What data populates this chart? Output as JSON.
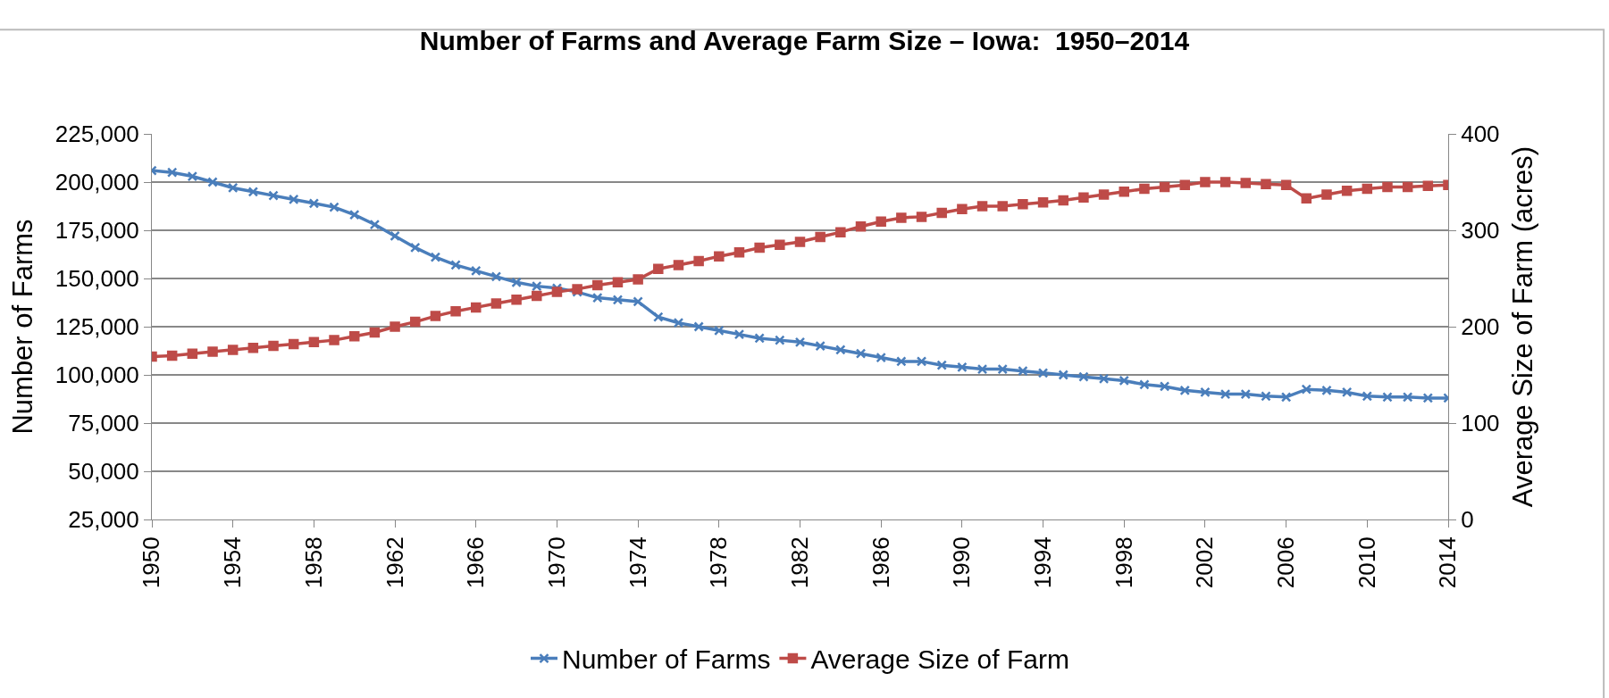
{
  "chart_data": {
    "type": "line",
    "title": "Number of Farms and Average Farm Size – Iowa:  1950–2014",
    "ylabel": "Number of Farms",
    "y2label": "Average Size of Farm (acres)",
    "x": [
      1950,
      1951,
      1952,
      1953,
      1954,
      1955,
      1956,
      1957,
      1958,
      1959,
      1960,
      1961,
      1962,
      1963,
      1964,
      1965,
      1966,
      1967,
      1968,
      1969,
      1970,
      1971,
      1972,
      1973,
      1974,
      1975,
      1976,
      1977,
      1978,
      1979,
      1980,
      1981,
      1982,
      1983,
      1984,
      1985,
      1986,
      1987,
      1988,
      1989,
      1990,
      1991,
      1992,
      1993,
      1994,
      1995,
      1996,
      1997,
      1998,
      1999,
      2000,
      2001,
      2002,
      2003,
      2004,
      2005,
      2006,
      2007,
      2008,
      2009,
      2010,
      2011,
      2012,
      2013,
      2014
    ],
    "series": [
      {
        "name": "Number of Farms",
        "color": "#4a7ebb",
        "marker": "cross",
        "values": [
          206000,
          205000,
          203000,
          200000,
          197000,
          195000,
          193000,
          191000,
          189000,
          187000,
          183000,
          178000,
          172000,
          166000,
          161000,
          157000,
          154000,
          151000,
          148000,
          146000,
          145000,
          143000,
          140000,
          139000,
          138000,
          130000,
          127000,
          125000,
          123000,
          121000,
          119000,
          118000,
          117000,
          115000,
          113000,
          111000,
          109000,
          107000,
          107000,
          105000,
          104000,
          103000,
          103000,
          102000,
          101000,
          100000,
          99000,
          98000,
          97000,
          95000,
          94000,
          92000,
          91000,
          90000,
          90000,
          89000,
          88500,
          92500,
          92000,
          91000,
          89000,
          88500,
          88500,
          88000,
          88000
        ]
      },
      {
        "name": "Average Size of Farm",
        "color": "#be4b48",
        "marker": "square",
        "axis": "y2",
        "values": [
          169,
          170,
          172,
          174,
          176,
          178,
          180,
          182,
          184,
          186,
          190,
          194,
          200,
          205,
          211,
          216,
          220,
          224,
          228,
          232,
          236,
          239,
          243,
          246,
          249,
          260,
          264,
          268,
          273,
          277,
          282,
          285,
          288,
          293,
          298,
          304,
          309,
          313,
          314,
          318,
          322,
          325,
          325,
          327,
          329,
          331,
          334,
          337,
          340,
          343,
          345,
          347,
          350,
          350,
          349,
          348,
          347,
          333,
          337,
          341,
          343,
          345,
          345,
          346,
          347
        ]
      }
    ],
    "xlim": [
      1950,
      2014
    ],
    "xticks": [
      1950,
      1954,
      1958,
      1962,
      1966,
      1970,
      1974,
      1978,
      1982,
      1986,
      1990,
      1994,
      1998,
      2002,
      2006,
      2010,
      2014
    ],
    "ylim": [
      25000,
      225000
    ],
    "yticks": [
      {
        "value": 25000,
        "label": "25,000"
      },
      {
        "value": 50000,
        "label": "50,000"
      },
      {
        "value": 75000,
        "label": "75,000"
      },
      {
        "value": 100000,
        "label": "100,000"
      },
      {
        "value": 125000,
        "label": "125,000"
      },
      {
        "value": 150000,
        "label": "150,000"
      },
      {
        "value": 175000,
        "label": "175,000"
      },
      {
        "value": 200000,
        "label": "200,000"
      },
      {
        "value": 225000,
        "label": "225,000"
      }
    ],
    "y2lim": [
      0,
      400
    ],
    "y2ticks": [
      0,
      100,
      200,
      300,
      400
    ],
    "grid": "y",
    "legend": "bottom",
    "line_style": "solid"
  }
}
